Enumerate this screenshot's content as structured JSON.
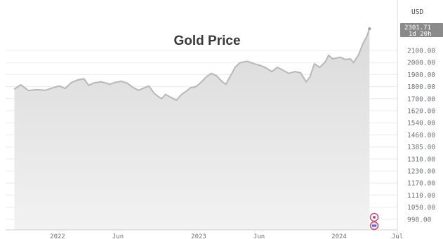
{
  "chart_data": {
    "type": "area",
    "title": "Gold Price",
    "currency": "USD",
    "y_ticks": [
      "2100.00",
      "2000.00",
      "1900.00",
      "1800.00",
      "1700.00",
      "1620.00",
      "1540.00",
      "1460.00",
      "1385.00",
      "1310.00",
      "1230.00",
      "1170.00",
      "1110.00",
      "1050.00",
      "998.00"
    ],
    "x_ticks": [
      "2022",
      "Jun",
      "2023",
      "Jun",
      "2024",
      "Jul"
    ],
    "ylim": [
      998,
      2301.71
    ],
    "last_value": "2301.71",
    "countdown": "1d 20h",
    "series": [
      {
        "values": [
          [
            "2021-09-15",
            1780
          ],
          [
            "2021-10-01",
            1815
          ],
          [
            "2021-10-20",
            1768
          ],
          [
            "2021-11-10",
            1775
          ],
          [
            "2021-12-01",
            1770
          ],
          [
            "2021-12-20",
            1790
          ],
          [
            "2022-01-05",
            1805
          ],
          [
            "2022-01-20",
            1785
          ],
          [
            "2022-02-05",
            1835
          ],
          [
            "2022-02-20",
            1855
          ],
          [
            "2022-03-08",
            1865
          ],
          [
            "2022-03-20",
            1810
          ],
          [
            "2022-04-01",
            1830
          ],
          [
            "2022-04-20",
            1840
          ],
          [
            "2022-05-01",
            1830
          ],
          [
            "2022-05-12",
            1820
          ],
          [
            "2022-05-25",
            1835
          ],
          [
            "2022-06-10",
            1845
          ],
          [
            "2022-06-25",
            1830
          ],
          [
            "2022-07-10",
            1795
          ],
          [
            "2022-07-25",
            1770
          ],
          [
            "2022-08-10",
            1790
          ],
          [
            "2022-08-22",
            1805
          ],
          [
            "2022-09-05",
            1745
          ],
          [
            "2022-09-15",
            1720
          ],
          [
            "2022-09-25",
            1700
          ],
          [
            "2022-10-05",
            1735
          ],
          [
            "2022-10-20",
            1710
          ],
          [
            "2022-11-03",
            1690
          ],
          [
            "2022-11-15",
            1730
          ],
          [
            "2022-11-28",
            1760
          ],
          [
            "2022-12-10",
            1790
          ],
          [
            "2022-12-25",
            1800
          ],
          [
            "2023-01-05",
            1830
          ],
          [
            "2023-01-20",
            1880
          ],
          [
            "2023-02-01",
            1910
          ],
          [
            "2023-02-15",
            1890
          ],
          [
            "2023-03-01",
            1840
          ],
          [
            "2023-03-10",
            1820
          ],
          [
            "2023-03-20",
            1880
          ],
          [
            "2023-04-03",
            1965
          ],
          [
            "2023-04-15",
            2000
          ],
          [
            "2023-05-03",
            2010
          ],
          [
            "2023-05-20",
            1990
          ],
          [
            "2023-06-05",
            1975
          ],
          [
            "2023-06-20",
            1955
          ],
          [
            "2023-07-05",
            1925
          ],
          [
            "2023-07-20",
            1960
          ],
          [
            "2023-08-05",
            1935
          ],
          [
            "2023-08-20",
            1910
          ],
          [
            "2023-09-05",
            1925
          ],
          [
            "2023-09-20",
            1915
          ],
          [
            "2023-10-05",
            1840
          ],
          [
            "2023-10-15",
            1880
          ],
          [
            "2023-10-27",
            1990
          ],
          [
            "2023-11-10",
            1960
          ],
          [
            "2023-11-25",
            2005
          ],
          [
            "2023-12-04",
            2060
          ],
          [
            "2023-12-15",
            2030
          ],
          [
            "2024-01-05",
            2045
          ],
          [
            "2024-01-20",
            2025
          ],
          [
            "2024-02-05",
            2030
          ],
          [
            "2024-02-15",
            2000
          ],
          [
            "2024-03-01",
            2060
          ],
          [
            "2024-03-15",
            2160
          ],
          [
            "2024-03-28",
            2235
          ],
          [
            "2024-04-05",
            2301.71
          ]
        ]
      }
    ],
    "grid": true,
    "markers": [
      "flag-icon",
      "earnings-icon"
    ]
  },
  "colors": {
    "line": "#b8b8b8",
    "fill_top": "#dadada",
    "fill_bottom": "#f2f2f2",
    "grid": "#ececec",
    "axis_text": "#6f7278",
    "last_label_bg": "#8a8a8a",
    "title": "#3a3a3a"
  }
}
